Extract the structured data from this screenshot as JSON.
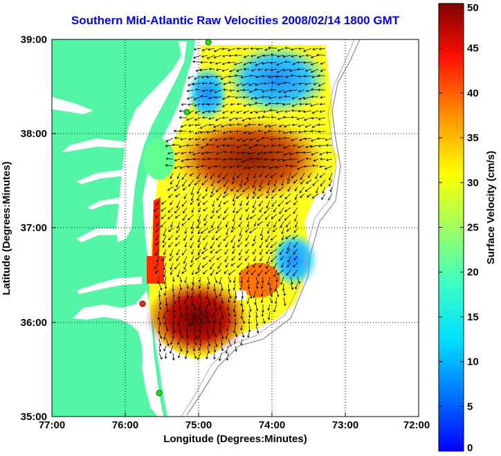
{
  "map": {
    "title": "Southern Mid-Atlantic Raw Velocities 2008/02/14 1800 GMT",
    "xlabel": "Longitude (Degrees:Minutes)",
    "ylabel": "Latitude (Degrees:Minutes)",
    "x_ticks": [
      "77:00",
      "76:00",
      "75:00",
      "74:00",
      "73:00",
      "72:00"
    ],
    "y_ticks": [
      "39:00",
      "38:00",
      "37:00",
      "36:00",
      "35:00"
    ],
    "lon_range": [
      -77.0,
      -72.0
    ],
    "lat_range": [
      35.0,
      39.0
    ],
    "land_color": "#55f5a8",
    "colorbar": {
      "label": "Surface Velocity (cm/s)",
      "min": 0,
      "max": 50,
      "ticks": [
        "0",
        "5",
        "10",
        "15",
        "20",
        "25",
        "30",
        "35",
        "40",
        "45",
        "50"
      ],
      "colormap": "jet"
    },
    "station_markers": [
      {
        "color": "green",
        "lon": -74.87,
        "lat": 38.96
      },
      {
        "color": "green",
        "lon": -75.15,
        "lat": 38.22
      },
      {
        "color": "red",
        "lon": -75.72,
        "lat": 36.19
      },
      {
        "color": "green",
        "lon": -75.52,
        "lat": 35.25
      }
    ]
  }
}
